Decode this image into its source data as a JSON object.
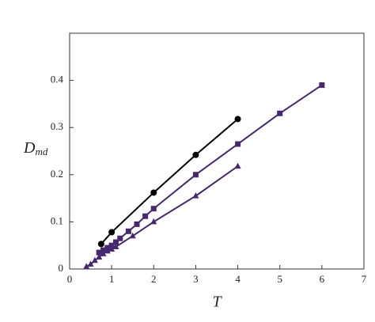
{
  "chart_data": {
    "type": "scatter",
    "xlabel": "T",
    "ylabel": "D",
    "ylabel_sub": "md",
    "xlim": [
      0,
      7
    ],
    "ylim": [
      0,
      0.5
    ],
    "xticks": [
      0,
      1,
      2,
      3,
      4,
      5,
      6,
      7
    ],
    "yticks": [
      0,
      0.1,
      0.2,
      0.3,
      0.4
    ],
    "series": [
      {
        "color": "#000000",
        "marker": "circle",
        "x": [
          0.75,
          1,
          2,
          3,
          4
        ],
        "values": [
          0.053,
          0.078,
          0.162,
          0.242,
          0.318
        ]
      },
      {
        "color": "#45286f",
        "marker": "square",
        "x": [
          0.7,
          0.8,
          0.9,
          1,
          1.1,
          1.2,
          1.4,
          1.6,
          1.8,
          2,
          3,
          4,
          5,
          6
        ],
        "values": [
          0.035,
          0.04,
          0.045,
          0.05,
          0.057,
          0.065,
          0.08,
          0.095,
          0.112,
          0.128,
          0.2,
          0.265,
          0.33,
          0.39
        ]
      },
      {
        "color": "#45286f",
        "marker": "triangle",
        "x": [
          0.4,
          0.5,
          0.6,
          0.7,
          0.8,
          0.9,
          1,
          1.1,
          1.5,
          2,
          3,
          4
        ],
        "values": [
          0.005,
          0.01,
          0.018,
          0.025,
          0.032,
          0.038,
          0.042,
          0.047,
          0.07,
          0.1,
          0.155,
          0.218
        ]
      }
    ]
  }
}
